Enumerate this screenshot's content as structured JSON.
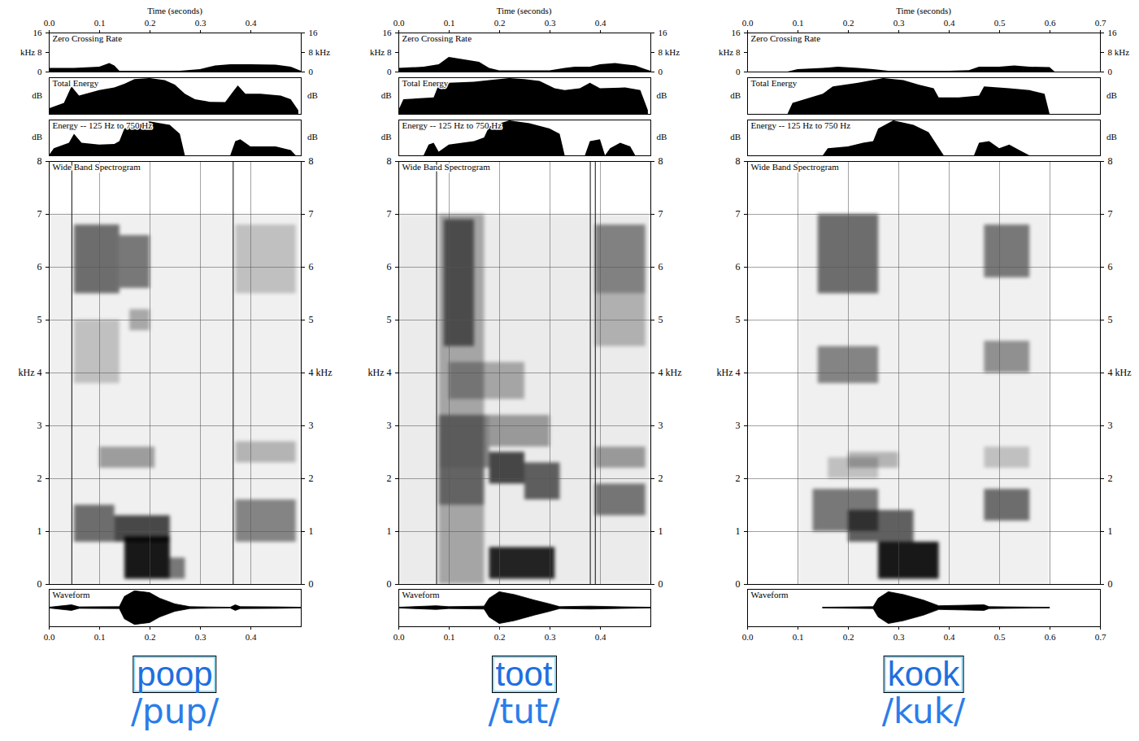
{
  "chart_data": [
    {
      "type": "spectrogram",
      "title": "poop",
      "subtitle": "/pup/",
      "x_label": "Time (seconds)",
      "xlim": [
        0,
        0.5
      ],
      "xticks": [
        {
          "value": 0,
          "label": "0.0"
        },
        0.1,
        0.2,
        0.3,
        0.4
      ],
      "bursts": [
        0.045,
        0.365
      ],
      "zero_crossing_rate": {
        "title": "Zero Crossing Rate",
        "ylim": [
          0,
          16
        ],
        "yticks": [
          0,
          {
            "value": 8,
            "label": "kHz 8"
          },
          16
        ],
        "y2lim": [
          0,
          16
        ],
        "y2ticks": [
          0,
          {
            "value": 8,
            "label": "8 kHz"
          },
          16
        ],
        "x": [
          0,
          0.05,
          0.1,
          0.12,
          0.13,
          0.14,
          0.2,
          0.26,
          0.3,
          0.33,
          0.36,
          0.4,
          0.45,
          0.48,
          0.5
        ],
        "values": [
          1.5,
          1.5,
          2,
          3.5,
          2.5,
          0.3,
          0.3,
          0.3,
          1,
          2.5,
          3,
          3,
          2.8,
          2,
          0.3
        ]
      },
      "total_energy": {
        "title": "Total Energy",
        "y_label": "dB",
        "ylim": [
          0,
          100
        ],
        "tick_labels": false,
        "x": [
          0,
          0.01,
          0.03,
          0.045,
          0.06,
          0.1,
          0.13,
          0.15,
          0.17,
          0.2,
          0.23,
          0.25,
          0.27,
          0.29,
          0.32,
          0.35,
          0.365,
          0.375,
          0.39,
          0.42,
          0.46,
          0.48,
          0.495
        ],
        "values": [
          15,
          20,
          30,
          75,
          50,
          65,
          72,
          82,
          95,
          98,
          92,
          80,
          55,
          40,
          33,
          32,
          60,
          78,
          55,
          55,
          50,
          40,
          10
        ]
      },
      "band_energy": {
        "title": "Energy -- 125 Hz to 750 Hz",
        "y_label": "dB",
        "ylim": [
          0,
          100
        ],
        "tick_labels": false,
        "x": [
          0,
          0.01,
          0.04,
          0.05,
          0.065,
          0.1,
          0.13,
          0.14,
          0.15,
          0.2,
          0.24,
          0.26,
          0.27,
          0.36,
          0.37,
          0.38,
          0.4,
          0.45,
          0.48,
          0.49
        ],
        "values": [
          0,
          20,
          35,
          60,
          35,
          30,
          32,
          40,
          75,
          95,
          85,
          60,
          0,
          0,
          40,
          45,
          25,
          25,
          15,
          0
        ]
      },
      "spectrogram": {
        "title": "Wide Band Spectrogram",
        "ylim": [
          0,
          8
        ],
        "yticks": [
          0,
          1,
          2,
          3,
          {
            "value": 4,
            "label": "kHz 4"
          },
          5,
          6,
          7,
          8
        ],
        "y2lim": [
          0,
          8
        ],
        "y2ticks": [
          0,
          1,
          2,
          3,
          {
            "value": 4,
            "label": "4 kHz"
          },
          5,
          6,
          7,
          8
        ],
        "grid": true,
        "tick_labels": "y",
        "level_lim": [
          0,
          1
        ],
        "cells": [
          {
            "t0": 0,
            "t1": 0.5,
            "f0": 0,
            "f1": 7,
            "level": 0.06
          },
          {
            "t0": 0.05,
            "t1": 0.14,
            "f0": 5.5,
            "f1": 6.8,
            "level": 0.55
          },
          {
            "t0": 0.14,
            "t1": 0.2,
            "f0": 5.6,
            "f1": 6.6,
            "level": 0.5
          },
          {
            "t0": 0.05,
            "t1": 0.14,
            "f0": 3.8,
            "f1": 5,
            "level": 0.2
          },
          {
            "t0": 0.05,
            "t1": 0.13,
            "f0": 0.8,
            "f1": 1.5,
            "level": 0.55
          },
          {
            "t0": 0.13,
            "t1": 0.24,
            "f0": 0.8,
            "f1": 1.3,
            "level": 0.7
          },
          {
            "t0": 0.15,
            "t1": 0.24,
            "f0": 0.1,
            "f1": 0.9,
            "level": 0.9
          },
          {
            "t0": 0.24,
            "t1": 0.27,
            "f0": 0.1,
            "f1": 0.5,
            "level": 0.5
          },
          {
            "t0": 0.1,
            "t1": 0.21,
            "f0": 2.2,
            "f1": 2.6,
            "level": 0.35
          },
          {
            "t0": 0.16,
            "t1": 0.2,
            "f0": 4.8,
            "f1": 5.2,
            "level": 0.3
          },
          {
            "t0": 0.37,
            "t1": 0.49,
            "f0": 0.8,
            "f1": 1.6,
            "level": 0.45
          },
          {
            "t0": 0.37,
            "t1": 0.49,
            "f0": 2.3,
            "f1": 2.7,
            "level": 0.25
          },
          {
            "t0": 0.37,
            "t1": 0.49,
            "f0": 5.5,
            "f1": 6.8,
            "level": 0.2
          }
        ]
      },
      "waveform": {
        "title": "Waveform",
        "ylim": [
          -1,
          1
        ],
        "tick_labels": "x",
        "x": [
          0,
          0.045,
          0.06,
          0.14,
          0.15,
          0.17,
          0.2,
          0.22,
          0.25,
          0.28,
          0.36,
          0.37,
          0.38,
          0.45,
          0.5
        ],
        "envelope": [
          0.02,
          0.15,
          0.04,
          0.05,
          0.6,
          0.9,
          0.8,
          0.5,
          0.2,
          0.05,
          0.02,
          0.15,
          0.05,
          0.04,
          0.02
        ]
      }
    },
    {
      "type": "spectrogram",
      "title": "toot",
      "subtitle": "/tut/",
      "x_label": "Time (seconds)",
      "xlim": [
        0,
        0.5
      ],
      "xticks": [
        {
          "value": 0,
          "label": "0.0"
        },
        0.1,
        0.2,
        0.3,
        0.4
      ],
      "bursts": [
        0.075,
        0.38,
        0.39
      ],
      "zero_crossing_rate": {
        "title": "Zero Crossing Rate",
        "ylim": [
          0,
          16
        ],
        "yticks": [
          0,
          {
            "value": 8,
            "label": "kHz 8"
          },
          16
        ],
        "y2lim": [
          0,
          16
        ],
        "y2ticks": [
          0,
          {
            "value": 8,
            "label": "8 kHz"
          },
          16
        ],
        "x": [
          0,
          0.05,
          0.08,
          0.1,
          0.13,
          0.16,
          0.18,
          0.2,
          0.3,
          0.33,
          0.35,
          0.38,
          0.4,
          0.43,
          0.47,
          0.49,
          0.5
        ],
        "values": [
          1.5,
          2,
          3,
          6,
          5,
          4,
          1.5,
          0.5,
          0.5,
          1.5,
          2,
          2,
          3,
          3.5,
          2.5,
          1,
          0.3
        ]
      },
      "total_energy": {
        "title": "Total Energy",
        "y_label": "dB",
        "ylim": [
          0,
          100
        ],
        "tick_labels": false,
        "x": [
          0,
          0.01,
          0.07,
          0.08,
          0.1,
          0.15,
          0.18,
          0.22,
          0.25,
          0.28,
          0.31,
          0.33,
          0.36,
          0.38,
          0.4,
          0.45,
          0.48,
          0.495
        ],
        "values": [
          10,
          40,
          45,
          80,
          85,
          88,
          92,
          98,
          95,
          90,
          70,
          65,
          70,
          85,
          70,
          72,
          65,
          10
        ]
      },
      "band_energy": {
        "title": "Energy -- 125 Hz to 750 Hz",
        "y_label": "dB",
        "ylim": [
          0,
          100
        ],
        "tick_labels": false,
        "x": [
          0,
          0.05,
          0.06,
          0.07,
          0.08,
          0.1,
          0.15,
          0.17,
          0.18,
          0.22,
          0.26,
          0.3,
          0.32,
          0.33,
          0.37,
          0.38,
          0.4,
          0.41,
          0.42,
          0.44,
          0.46,
          0.47,
          0.5
        ],
        "values": [
          0,
          0,
          30,
          35,
          10,
          30,
          40,
          50,
          80,
          98,
          90,
          75,
          60,
          0,
          0,
          40,
          45,
          0,
          20,
          35,
          25,
          0,
          0
        ]
      },
      "spectrogram": {
        "title": "Wide Band Spectrogram",
        "ylim": [
          0,
          8
        ],
        "yticks": [
          0,
          1,
          2,
          3,
          {
            "value": 4,
            "label": "kHz 4"
          },
          5,
          6,
          7,
          8
        ],
        "y2lim": [
          0,
          8
        ],
        "y2ticks": [
          0,
          1,
          2,
          3,
          {
            "value": 4,
            "label": "4 kHz"
          },
          5,
          6,
          7,
          8
        ],
        "grid": true,
        "tick_labels": "y",
        "level_lim": [
          0,
          1
        ],
        "cells": [
          {
            "t0": 0,
            "t1": 0.5,
            "f0": 0,
            "f1": 7,
            "level": 0.08
          },
          {
            "t0": 0.08,
            "t1": 0.17,
            "f0": 0,
            "f1": 7,
            "level": 0.3
          },
          {
            "t0": 0.09,
            "t1": 0.15,
            "f0": 4.5,
            "f1": 6.9,
            "level": 0.55
          },
          {
            "t0": 0.08,
            "t1": 0.18,
            "f0": 2.2,
            "f1": 3.2,
            "level": 0.45
          },
          {
            "t0": 0.08,
            "t1": 0.17,
            "f0": 1.5,
            "f1": 2.2,
            "level": 0.4
          },
          {
            "t0": 0.18,
            "t1": 0.31,
            "f0": 0.1,
            "f1": 0.7,
            "level": 0.85
          },
          {
            "t0": 0.18,
            "t1": 0.25,
            "f0": 1.9,
            "f1": 2.5,
            "level": 0.7
          },
          {
            "t0": 0.25,
            "t1": 0.32,
            "f0": 1.6,
            "f1": 2.3,
            "level": 0.6
          },
          {
            "t0": 0.18,
            "t1": 0.3,
            "f0": 2.6,
            "f1": 3.2,
            "level": 0.35
          },
          {
            "t0": 0.1,
            "t1": 0.25,
            "f0": 3.5,
            "f1": 4.2,
            "level": 0.3
          },
          {
            "t0": 0.39,
            "t1": 0.49,
            "f0": 5.5,
            "f1": 6.8,
            "level": 0.45
          },
          {
            "t0": 0.39,
            "t1": 0.49,
            "f0": 4.5,
            "f1": 5.5,
            "level": 0.25
          },
          {
            "t0": 0.39,
            "t1": 0.49,
            "f0": 2.2,
            "f1": 2.6,
            "level": 0.35
          },
          {
            "t0": 0.39,
            "t1": 0.49,
            "f0": 1.3,
            "f1": 1.9,
            "level": 0.5
          }
        ]
      },
      "waveform": {
        "title": "Waveform",
        "ylim": [
          -1,
          1
        ],
        "tick_labels": "x",
        "x": [
          0,
          0.075,
          0.1,
          0.17,
          0.18,
          0.2,
          0.23,
          0.27,
          0.3,
          0.32,
          0.38,
          0.45,
          0.5
        ],
        "envelope": [
          0.02,
          0.1,
          0.05,
          0.08,
          0.5,
          0.85,
          0.7,
          0.4,
          0.2,
          0.05,
          0.08,
          0.04,
          0.02
        ]
      }
    },
    {
      "type": "spectrogram",
      "title": "kook",
      "subtitle": "/kuk/",
      "x_label": "Time (seconds)",
      "xlim": [
        0,
        0.7
      ],
      "xticks": [
        {
          "value": 0,
          "label": "0.0"
        },
        0.1,
        0.2,
        0.3,
        0.4,
        0.5,
        0.6,
        0.7
      ],
      "zero_crossing_rate": {
        "title": "Zero Crossing Rate",
        "ylim": [
          0,
          16
        ],
        "yticks": [
          0,
          {
            "value": 8,
            "label": "kHz 8"
          },
          16
        ],
        "y2lim": [
          0,
          16
        ],
        "y2ticks": [
          0,
          {
            "value": 8,
            "label": "8 kHz"
          },
          16
        ],
        "x": [
          0,
          0.08,
          0.1,
          0.15,
          0.18,
          0.22,
          0.25,
          0.28,
          0.4,
          0.44,
          0.46,
          0.5,
          0.53,
          0.56,
          0.6,
          0.61,
          0.7
        ],
        "values": [
          0,
          0,
          1,
          1.5,
          2,
          1.5,
          1,
          0.3,
          0.3,
          0.6,
          2,
          2,
          2.5,
          2,
          1.8,
          0,
          0
        ]
      },
      "total_energy": {
        "title": "Total Energy",
        "y_label": "dB",
        "ylim": [
          0,
          100
        ],
        "tick_labels": false,
        "x": [
          0,
          0.08,
          0.09,
          0.15,
          0.17,
          0.22,
          0.27,
          0.31,
          0.34,
          0.37,
          0.38,
          0.42,
          0.46,
          0.47,
          0.52,
          0.56,
          0.59,
          0.6,
          0.7
        ],
        "values": [
          0,
          0,
          30,
          55,
          75,
          85,
          98,
          92,
          80,
          70,
          45,
          45,
          50,
          75,
          70,
          65,
          55,
          0,
          0
        ]
      },
      "band_energy": {
        "title": "Energy -- 125 Hz to 750 Hz",
        "y_label": "dB",
        "ylim": [
          0,
          100
        ],
        "tick_labels": false,
        "x": [
          0,
          0.15,
          0.16,
          0.2,
          0.23,
          0.25,
          0.26,
          0.29,
          0.33,
          0.36,
          0.39,
          0.45,
          0.46,
          0.48,
          0.5,
          0.52,
          0.54,
          0.56,
          0.7
        ],
        "values": [
          0,
          0,
          20,
          25,
          35,
          40,
          75,
          98,
          85,
          65,
          0,
          0,
          35,
          40,
          20,
          30,
          15,
          0,
          0
        ]
      },
      "spectrogram": {
        "title": "Wide Band Spectrogram",
        "ylim": [
          0,
          8
        ],
        "yticks": [
          0,
          1,
          2,
          3,
          {
            "value": 4,
            "label": "kHz 4"
          },
          5,
          6,
          7,
          8
        ],
        "y2lim": [
          0,
          8
        ],
        "y2ticks": [
          0,
          1,
          2,
          3,
          {
            "value": 4,
            "label": "4 kHz"
          },
          5,
          6,
          7,
          8
        ],
        "grid": true,
        "tick_labels": "y",
        "level_lim": [
          0,
          1
        ],
        "cells": [
          {
            "t0": 0.1,
            "t1": 0.6,
            "f0": 0,
            "f1": 7,
            "level": 0.06
          },
          {
            "t0": 0.14,
            "t1": 0.26,
            "f0": 5.5,
            "f1": 7,
            "level": 0.55
          },
          {
            "t0": 0.14,
            "t1": 0.26,
            "f0": 3.8,
            "f1": 4.5,
            "level": 0.45
          },
          {
            "t0": 0.13,
            "t1": 0.26,
            "f0": 1,
            "f1": 1.8,
            "level": 0.5
          },
          {
            "t0": 0.16,
            "t1": 0.26,
            "f0": 2,
            "f1": 2.4,
            "level": 0.2
          },
          {
            "t0": 0.26,
            "t1": 0.38,
            "f0": 0.1,
            "f1": 0.8,
            "level": 0.9
          },
          {
            "t0": 0.2,
            "t1": 0.33,
            "f0": 0.8,
            "f1": 1.4,
            "level": 0.6
          },
          {
            "t0": 0.2,
            "t1": 0.3,
            "f0": 2.2,
            "f1": 2.5,
            "level": 0.25
          },
          {
            "t0": 0.47,
            "t1": 0.56,
            "f0": 5.8,
            "f1": 6.8,
            "level": 0.5
          },
          {
            "t0": 0.47,
            "t1": 0.56,
            "f0": 4,
            "f1": 4.6,
            "level": 0.4
          },
          {
            "t0": 0.47,
            "t1": 0.56,
            "f0": 1.2,
            "f1": 1.8,
            "level": 0.55
          },
          {
            "t0": 0.47,
            "t1": 0.56,
            "f0": 2.2,
            "f1": 2.6,
            "level": 0.2
          }
        ]
      },
      "waveform": {
        "title": "Waveform",
        "ylim": [
          -1,
          1
        ],
        "tick_labels": "x",
        "x": [
          0.15,
          0.25,
          0.26,
          0.28,
          0.31,
          0.35,
          0.38,
          0.47,
          0.48,
          0.55,
          0.6
        ],
        "envelope": [
          0.02,
          0.05,
          0.5,
          0.85,
          0.7,
          0.4,
          0.1,
          0.15,
          0.05,
          0.03,
          0.02
        ]
      }
    }
  ]
}
